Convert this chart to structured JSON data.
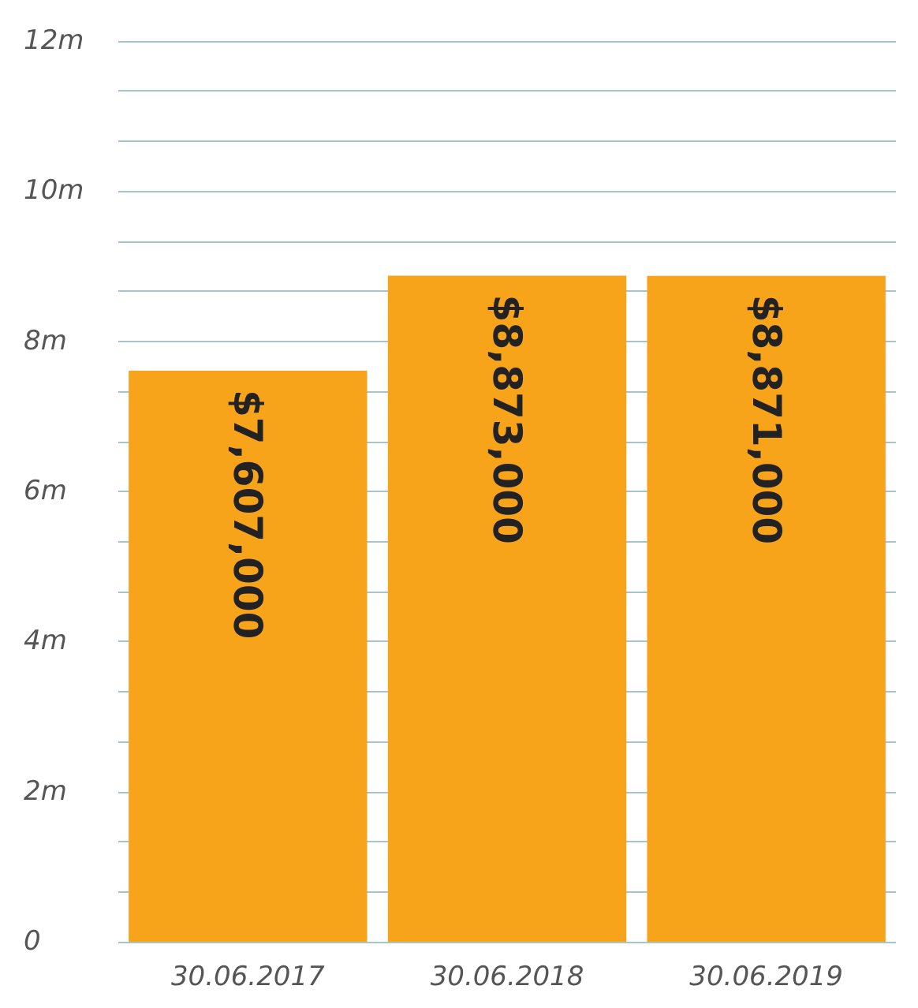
{
  "chart_data": {
    "type": "bar",
    "categories": [
      "30.06.2017",
      "30.06.2018",
      "30.06.2019"
    ],
    "values": [
      7607000,
      8873000,
      8871000
    ],
    "value_labels": [
      "$7,607,000",
      "$8,873,000",
      "$8,871,000"
    ],
    "color": "#f8a41b",
    "ylim": [
      0,
      12000000
    ],
    "yticks": [
      {
        "value": 0,
        "label": "0"
      },
      {
        "value": 666667,
        "label": null
      },
      {
        "value": 1333333,
        "label": null
      },
      {
        "value": 2000000,
        "label": "2m"
      },
      {
        "value": 2666667,
        "label": null
      },
      {
        "value": 3333333,
        "label": null
      },
      {
        "value": 4000000,
        "label": "4m"
      },
      {
        "value": 4666667,
        "label": null
      },
      {
        "value": 5333333,
        "label": null
      },
      {
        "value": 6000000,
        "label": "6m"
      },
      {
        "value": 6666667,
        "label": null
      },
      {
        "value": 7333333,
        "label": null
      },
      {
        "value": 8000000,
        "label": "8m"
      },
      {
        "value": 8666667,
        "label": null
      },
      {
        "value": 9333333,
        "label": null
      },
      {
        "value": 10000000,
        "label": "10m"
      },
      {
        "value": 10666667,
        "label": null
      },
      {
        "value": 11333333,
        "label": null
      },
      {
        "value": 12000000,
        "label": "12m"
      }
    ],
    "grid": "y"
  }
}
